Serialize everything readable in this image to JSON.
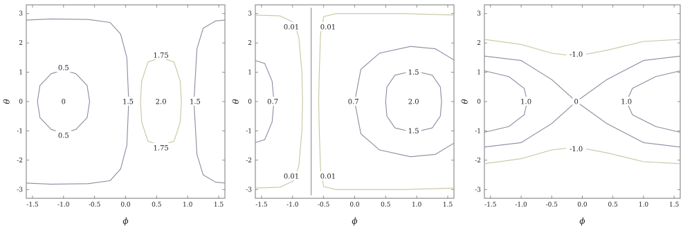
{
  "chart_data": [
    {
      "type": "contour",
      "xlabel": "ϕ",
      "ylabel": "θ",
      "xlim": [
        -1.6,
        1.6
      ],
      "ylim": [
        -3.3,
        3.3
      ],
      "xticks": [
        "-1.5",
        "-1.0",
        "-0.5",
        "0.0",
        "0.5",
        "1.0",
        "1.5"
      ],
      "yticks": [
        "-3",
        "-2",
        "-1",
        "0",
        "1",
        "2",
        "3"
      ],
      "contours": [
        {
          "level": "0.5",
          "color": "#8a8aa0",
          "points": [
            [
              -1.0,
              1.08
            ],
            [
              -0.8,
              0.95
            ],
            [
              -0.62,
              0.55
            ],
            [
              -0.58,
              0.0
            ],
            [
              -0.62,
              -0.55
            ],
            [
              -0.8,
              -0.95
            ],
            [
              -1.0,
              -1.08
            ],
            [
              -1.2,
              -0.95
            ],
            [
              -1.38,
              -0.55
            ],
            [
              -1.42,
              0.0
            ],
            [
              -1.38,
              0.55
            ],
            [
              -1.2,
              0.95
            ],
            [
              -1.0,
              1.08
            ]
          ]
        },
        {
          "level": "1.5",
          "color": "#8a8aa0",
          "points": [
            [
              -1.6,
              2.78
            ],
            [
              -1.2,
              2.82
            ],
            [
              -0.6,
              2.8
            ],
            [
              -0.25,
              2.7
            ],
            [
              -0.08,
              2.3
            ],
            [
              0.02,
              1.5
            ],
            [
              0.05,
              0.0
            ],
            [
              0.02,
              -1.5
            ],
            [
              -0.08,
              -2.3
            ],
            [
              -0.25,
              -2.7
            ],
            [
              -0.6,
              -2.8
            ],
            [
              -1.2,
              -2.82
            ],
            [
              -1.6,
              -2.78
            ]
          ]
        },
        {
          "level": "1.5",
          "color": "#8a8aa0",
          "points": [
            [
              1.6,
              2.78
            ],
            [
              1.45,
              2.75
            ],
            [
              1.25,
              2.5
            ],
            [
              1.15,
              1.8
            ],
            [
              1.1,
              0.0
            ],
            [
              1.15,
              -1.8
            ],
            [
              1.25,
              -2.5
            ],
            [
              1.45,
              -2.75
            ],
            [
              1.6,
              -2.78
            ]
          ]
        },
        {
          "level": "1.75",
          "color": "#c8c4a0",
          "points": [
            [
              0.57,
              1.5
            ],
            [
              0.78,
              1.35
            ],
            [
              0.88,
              0.7
            ],
            [
              0.9,
              0.0
            ],
            [
              0.88,
              -0.7
            ],
            [
              0.78,
              -1.35
            ],
            [
              0.57,
              -1.5
            ],
            [
              0.36,
              -1.35
            ],
            [
              0.26,
              -0.7
            ],
            [
              0.24,
              0.0
            ],
            [
              0.26,
              0.7
            ],
            [
              0.36,
              1.35
            ],
            [
              0.57,
              1.5
            ]
          ]
        }
      ],
      "labels": [
        {
          "text": "0",
          "x": -1.0,
          "y": 0.0
        },
        {
          "text": "0.5",
          "x": -1.0,
          "y": 1.15
        },
        {
          "text": "0.5",
          "x": -1.0,
          "y": -1.15
        },
        {
          "text": "1.5",
          "x": 0.04,
          "y": 0.0
        },
        {
          "text": "2.0",
          "x": 0.57,
          "y": 0.0
        },
        {
          "text": "1.75",
          "x": 0.57,
          "y": 1.58
        },
        {
          "text": "1.75",
          "x": 0.57,
          "y": -1.58
        },
        {
          "text": "1.5",
          "x": 1.12,
          "y": 0.0
        }
      ]
    },
    {
      "type": "contour",
      "xlabel": "ϕ",
      "ylabel": "θ",
      "xlim": [
        -1.6,
        1.6
      ],
      "ylim": [
        -3.3,
        3.3
      ],
      "xticks": [
        "-1.5",
        "-1.0",
        "-0.5",
        "0.0",
        "0.5",
        "1.0",
        "1.5"
      ],
      "yticks": [
        "-3",
        "-2",
        "-1",
        "0",
        "1",
        "2",
        "3"
      ],
      "contours": [
        {
          "level": "0.01",
          "color": "#c8c4a0",
          "points": [
            [
              -1.6,
              2.95
            ],
            [
              -1.2,
              2.92
            ],
            [
              -0.98,
              2.7
            ],
            [
              -0.9,
              2.2
            ],
            [
              -0.85,
              1.0
            ],
            [
              -0.84,
              0.0
            ],
            [
              -0.85,
              -1.0
            ],
            [
              -0.9,
              -2.2
            ],
            [
              -0.98,
              -2.7
            ],
            [
              -1.2,
              -2.92
            ],
            [
              -1.6,
              -2.95
            ]
          ]
        },
        {
          "level": "0.01",
          "color": "#c8c4a0",
          "points": [
            [
              1.6,
              2.95
            ],
            [
              0.8,
              3.0
            ],
            [
              -0.3,
              3.0
            ],
            [
              -0.5,
              2.9
            ],
            [
              -0.55,
              2.3
            ],
            [
              -0.57,
              1.0
            ],
            [
              -0.58,
              0.0
            ],
            [
              -0.57,
              -1.0
            ],
            [
              -0.55,
              -2.3
            ],
            [
              -0.5,
              -2.9
            ],
            [
              -0.3,
              -3.0
            ],
            [
              0.8,
              -3.0
            ],
            [
              1.6,
              -2.95
            ]
          ]
        },
        {
          "level": "",
          "color": "#8a8aa0",
          "points": [
            [
              -0.7,
              3.2
            ],
            [
              -0.7,
              -3.2
            ]
          ]
        },
        {
          "level": "0.7",
          "color": "#8a8aa0",
          "points": [
            [
              -1.6,
              1.4
            ],
            [
              -1.45,
              1.3
            ],
            [
              -1.33,
              0.7
            ],
            [
              -1.3,
              0.0
            ],
            [
              -1.33,
              -0.7
            ],
            [
              -1.45,
              -1.3
            ],
            [
              -1.6,
              -1.4
            ]
          ]
        },
        {
          "level": "0.7",
          "color": "#8a8aa0",
          "points": [
            [
              1.6,
              1.42
            ],
            [
              1.3,
              1.8
            ],
            [
              0.9,
              1.88
            ],
            [
              0.4,
              1.65
            ],
            [
              0.1,
              1.1
            ],
            [
              0.0,
              0.0
            ],
            [
              0.1,
              -1.1
            ],
            [
              0.4,
              -1.65
            ],
            [
              0.9,
              -1.88
            ],
            [
              1.3,
              -1.8
            ],
            [
              1.6,
              -1.42
            ]
          ]
        },
        {
          "level": "1.5",
          "color": "#8a8aa0",
          "points": [
            [
              0.95,
              1.05
            ],
            [
              1.25,
              0.9
            ],
            [
              1.38,
              0.5
            ],
            [
              1.4,
              0.0
            ],
            [
              1.38,
              -0.5
            ],
            [
              1.25,
              -0.9
            ],
            [
              0.95,
              -1.05
            ],
            [
              0.65,
              -0.9
            ],
            [
              0.52,
              -0.5
            ],
            [
              0.5,
              0.0
            ],
            [
              0.52,
              0.5
            ],
            [
              0.65,
              0.9
            ],
            [
              0.95,
              1.05
            ]
          ]
        }
      ],
      "labels": [
        {
          "text": "0.01",
          "x": -1.02,
          "y": 2.55
        },
        {
          "text": "0.01",
          "x": -0.43,
          "y": 2.55
        },
        {
          "text": "0.01",
          "x": -1.02,
          "y": -2.55
        },
        {
          "text": "0.01",
          "x": -0.43,
          "y": -2.55
        },
        {
          "text": "0.7",
          "x": -1.32,
          "y": 0.0
        },
        {
          "text": "0.7",
          "x": -0.02,
          "y": 0.0
        },
        {
          "text": "1.5",
          "x": 0.95,
          "y": 1.0
        },
        {
          "text": "1.5",
          "x": 0.95,
          "y": -1.0
        },
        {
          "text": "2.0",
          "x": 0.95,
          "y": 0.0
        }
      ]
    },
    {
      "type": "contour",
      "xlabel": "ϕ",
      "ylabel": "θ",
      "xlim": [
        -1.6,
        1.6
      ],
      "ylim": [
        -3.3,
        3.3
      ],
      "xticks": [
        "-1.5",
        "-1.0",
        "-0.5",
        "0.0",
        "0.5",
        "1.0",
        "1.5"
      ],
      "yticks": [
        "-3",
        "-2",
        "-1",
        "0",
        "1",
        "2",
        "3"
      ],
      "contours": [
        {
          "level": "-1.0",
          "color": "#c8c4a0",
          "points": [
            [
              -1.6,
              2.12
            ],
            [
              -1.0,
              1.95
            ],
            [
              -0.5,
              1.65
            ],
            [
              -0.1,
              1.55
            ],
            [
              0.4,
              1.75
            ],
            [
              1.0,
              2.05
            ],
            [
              1.6,
              2.12
            ]
          ]
        },
        {
          "level": "-1.0",
          "color": "#c8c4a0",
          "points": [
            [
              -1.6,
              -2.12
            ],
            [
              -1.0,
              -1.95
            ],
            [
              -0.5,
              -1.65
            ],
            [
              -0.1,
              -1.55
            ],
            [
              0.4,
              -1.75
            ],
            [
              1.0,
              -2.05
            ],
            [
              1.6,
              -2.12
            ]
          ]
        },
        {
          "level": "0",
          "color": "#8a8aa0",
          "points": [
            [
              -1.6,
              1.55
            ],
            [
              -1.0,
              1.4
            ],
            [
              -0.5,
              0.75
            ],
            [
              -0.1,
              0.0
            ],
            [
              0.4,
              -0.75
            ],
            [
              1.0,
              -1.4
            ],
            [
              1.6,
              -1.55
            ]
          ]
        },
        {
          "level": "0",
          "color": "#8a8aa0",
          "points": [
            [
              -1.6,
              -1.55
            ],
            [
              -1.0,
              -1.4
            ],
            [
              -0.5,
              -0.75
            ],
            [
              -0.1,
              0.0
            ],
            [
              0.4,
              0.75
            ],
            [
              1.0,
              1.4
            ],
            [
              1.6,
              1.55
            ]
          ]
        },
        {
          "level": "1.0",
          "color": "#8a8aa0",
          "points": [
            [
              -1.6,
              1.05
            ],
            [
              -1.2,
              0.85
            ],
            [
              -0.95,
              0.45
            ],
            [
              -0.9,
              0.0
            ],
            [
              -0.95,
              -0.45
            ],
            [
              -1.2,
              -0.85
            ],
            [
              -1.6,
              -1.05
            ]
          ]
        },
        {
          "level": "1.0",
          "color": "#8a8aa0",
          "points": [
            [
              1.6,
              1.05
            ],
            [
              1.2,
              0.85
            ],
            [
              0.82,
              0.45
            ],
            [
              0.72,
              0.0
            ],
            [
              0.82,
              -0.45
            ],
            [
              1.2,
              -0.85
            ],
            [
              1.6,
              -1.05
            ]
          ]
        }
      ],
      "labels": [
        {
          "text": "-1.0",
          "x": -0.1,
          "y": 1.62
        },
        {
          "text": "-1.0",
          "x": -0.1,
          "y": -1.62
        },
        {
          "text": "1.0",
          "x": -0.92,
          "y": 0.0
        },
        {
          "text": "0",
          "x": -0.1,
          "y": 0.0
        },
        {
          "text": "1.0",
          "x": 0.72,
          "y": 0.0
        }
      ]
    }
  ]
}
